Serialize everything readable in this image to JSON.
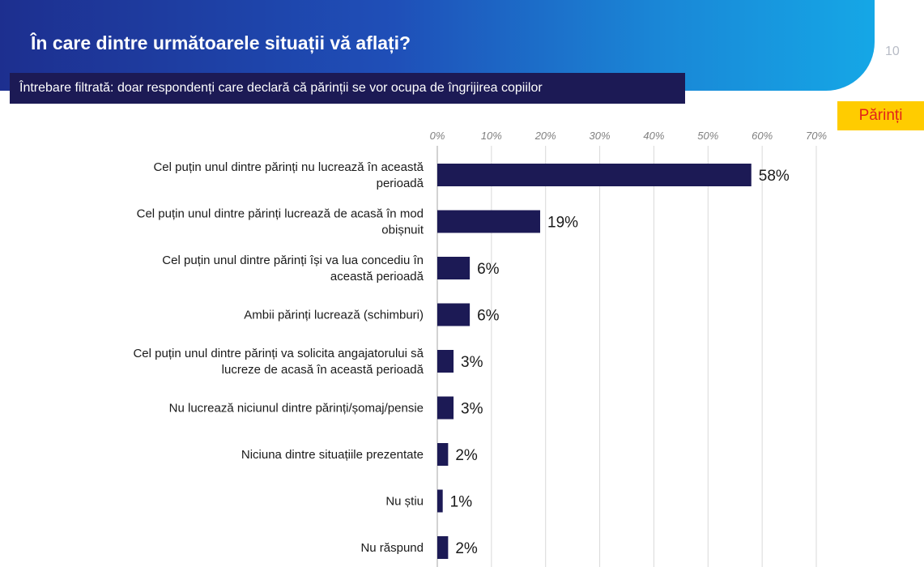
{
  "header": {
    "title": "În care dintre următoarele situații vă aflați?",
    "page_number": "10",
    "subtitle": "Întrebare filtrată: doar respondenți care declară că părinții se vor ocupa de îngrijirea copiilor",
    "tag": "Părinți"
  },
  "colors": {
    "bar": "#1c1a55",
    "banner_start": "#1d2f8f",
    "banner_end": "#15a7e6",
    "tag_background": "#ffcc00",
    "tag_text": "#e2231a"
  },
  "chart_data": {
    "type": "bar",
    "orientation": "horizontal",
    "categories": [
      [
        "Cel puțin unul dintre părinți nu lucrează în această",
        "perioadă"
      ],
      [
        "Cel puțin unul dintre părinți lucrează de acasă în mod",
        "obișnuit"
      ],
      [
        "Cel puțin unul dintre părinți își va lua concediu în",
        "această perioadă"
      ],
      [
        "Ambii părinți lucrează (schimburi)"
      ],
      [
        "Cel puțin unul dintre părinți va solicita angajatorului să",
        "lucreze de acasă în această perioadă"
      ],
      [
        "Nu lucrează niciunul dintre părinți/șomaj/pensie"
      ],
      [
        "Niciuna dintre situațiile prezentate"
      ],
      [
        "Nu știu"
      ],
      [
        "Nu răspund"
      ]
    ],
    "values": [
      58,
      19,
      6,
      6,
      3,
      3,
      2,
      1,
      2
    ],
    "value_labels": [
      "58%",
      "19%",
      "6%",
      "6%",
      "3%",
      "3%",
      "2%",
      "1%",
      "2%"
    ],
    "x_ticks": [
      0,
      10,
      20,
      30,
      40,
      50,
      60,
      70
    ],
    "x_tick_labels": [
      "0%",
      "10%",
      "20%",
      "30%",
      "40%",
      "50%",
      "60%",
      "70%"
    ],
    "xlim": [
      0,
      70
    ],
    "axis_position": "top",
    "grid": true
  }
}
